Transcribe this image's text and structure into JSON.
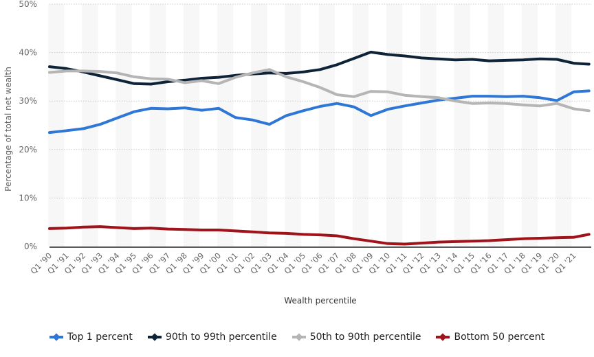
{
  "chart_data": {
    "type": "line",
    "title": "",
    "xlabel": "Wealth percentile",
    "ylabel": "Percentage of total net wealth",
    "ylim": [
      0,
      50
    ],
    "yticks": [
      "0%",
      "10%",
      "20%",
      "30%",
      "40%",
      "50%"
    ],
    "grid": true,
    "legend_position": "bottom",
    "x": [
      "Q1 '90",
      "Q1 '91",
      "Q1 '92",
      "Q1 '93",
      "Q1 '94",
      "Q1 '95",
      "Q1 '96",
      "Q1 '97",
      "Q1 '98",
      "Q1 '99",
      "Q1 '00",
      "Q1 '01",
      "Q1 '02",
      "Q1 '03",
      "Q1 '04",
      "Q1 '05",
      "Q1 '06",
      "Q1 '07",
      "Q1 '08",
      "Q1 '09",
      "Q1 '10",
      "Q1 '11",
      "Q1 '12",
      "Q1 '13",
      "Q1 '14",
      "Q1 '15",
      "Q1 '16",
      "Q1 '17",
      "Q1 '18",
      "Q1 '19",
      "Q1 '20",
      "Q1 '21",
      "Q2 '21"
    ],
    "series": [
      {
        "name": "Top 1 percent",
        "color": "#2f77d6",
        "values": [
          23.5,
          23.9,
          24.3,
          25.2,
          26.5,
          27.8,
          28.5,
          28.4,
          28.6,
          28.1,
          28.5,
          26.6,
          26.1,
          25.2,
          27.0,
          28.0,
          28.9,
          29.5,
          28.8,
          27.0,
          28.3,
          29.0,
          29.6,
          30.2,
          30.6,
          31.0,
          31.0,
          30.9,
          31.0,
          30.7,
          30.1,
          31.9,
          32.1
        ]
      },
      {
        "name": "90th to 99th percentile",
        "color": "#0e2338",
        "values": [
          37.1,
          36.7,
          36.0,
          35.2,
          34.4,
          33.6,
          33.5,
          34.0,
          34.3,
          34.7,
          34.9,
          35.3,
          35.6,
          35.8,
          35.7,
          36.0,
          36.5,
          37.5,
          38.8,
          40.1,
          39.6,
          39.3,
          38.9,
          38.7,
          38.5,
          38.6,
          38.3,
          38.4,
          38.5,
          38.7,
          38.6,
          37.8,
          37.6
        ]
      },
      {
        "name": "50th to 90th percentile",
        "color": "#b5b5b5",
        "values": [
          35.9,
          36.2,
          36.2,
          36.1,
          35.8,
          35.0,
          34.6,
          34.5,
          33.8,
          34.2,
          33.6,
          34.9,
          35.8,
          36.5,
          35.0,
          34.0,
          32.8,
          31.3,
          30.9,
          32.0,
          31.9,
          31.2,
          30.9,
          30.7,
          30.0,
          29.5,
          29.6,
          29.5,
          29.2,
          29.0,
          29.5,
          28.4,
          28.0
        ]
      },
      {
        "name": "Bottom 50 percent",
        "color": "#a0131b",
        "values": [
          3.7,
          3.8,
          4.0,
          4.1,
          3.9,
          3.7,
          3.8,
          3.6,
          3.5,
          3.4,
          3.4,
          3.2,
          3.0,
          2.8,
          2.7,
          2.5,
          2.4,
          2.2,
          1.6,
          1.1,
          0.6,
          0.5,
          0.7,
          0.9,
          1.0,
          1.1,
          1.2,
          1.4,
          1.6,
          1.7,
          1.8,
          1.9,
          2.5
        ]
      }
    ]
  }
}
